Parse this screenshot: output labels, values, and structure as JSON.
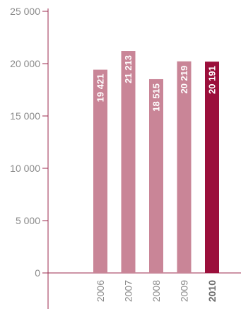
{
  "chart_data": {
    "type": "bar",
    "categories": [
      "2006",
      "2007",
      "2008",
      "2009",
      "2010"
    ],
    "values": [
      19421,
      21213,
      18515,
      20219,
      20191
    ],
    "value_labels": [
      "19 421",
      "21 213",
      "18 515",
      "20 219",
      "20 191"
    ],
    "highlight_category": "2010",
    "title": "",
    "xlabel": "",
    "ylabel": "",
    "ylim": [
      0,
      25000
    ],
    "yticks": [
      0,
      5000,
      10000,
      15000,
      20000,
      25000
    ],
    "ytick_labels": [
      "0",
      "5 000",
      "10 000",
      "15 000",
      "20 000",
      "25 000"
    ],
    "grid": false,
    "legend": "none",
    "colors": {
      "bar": "#c98597",
      "bar_highlight": "#9b0f3b",
      "axis": "#9b2a4e",
      "tick_text": "#8a8a8a"
    }
  }
}
